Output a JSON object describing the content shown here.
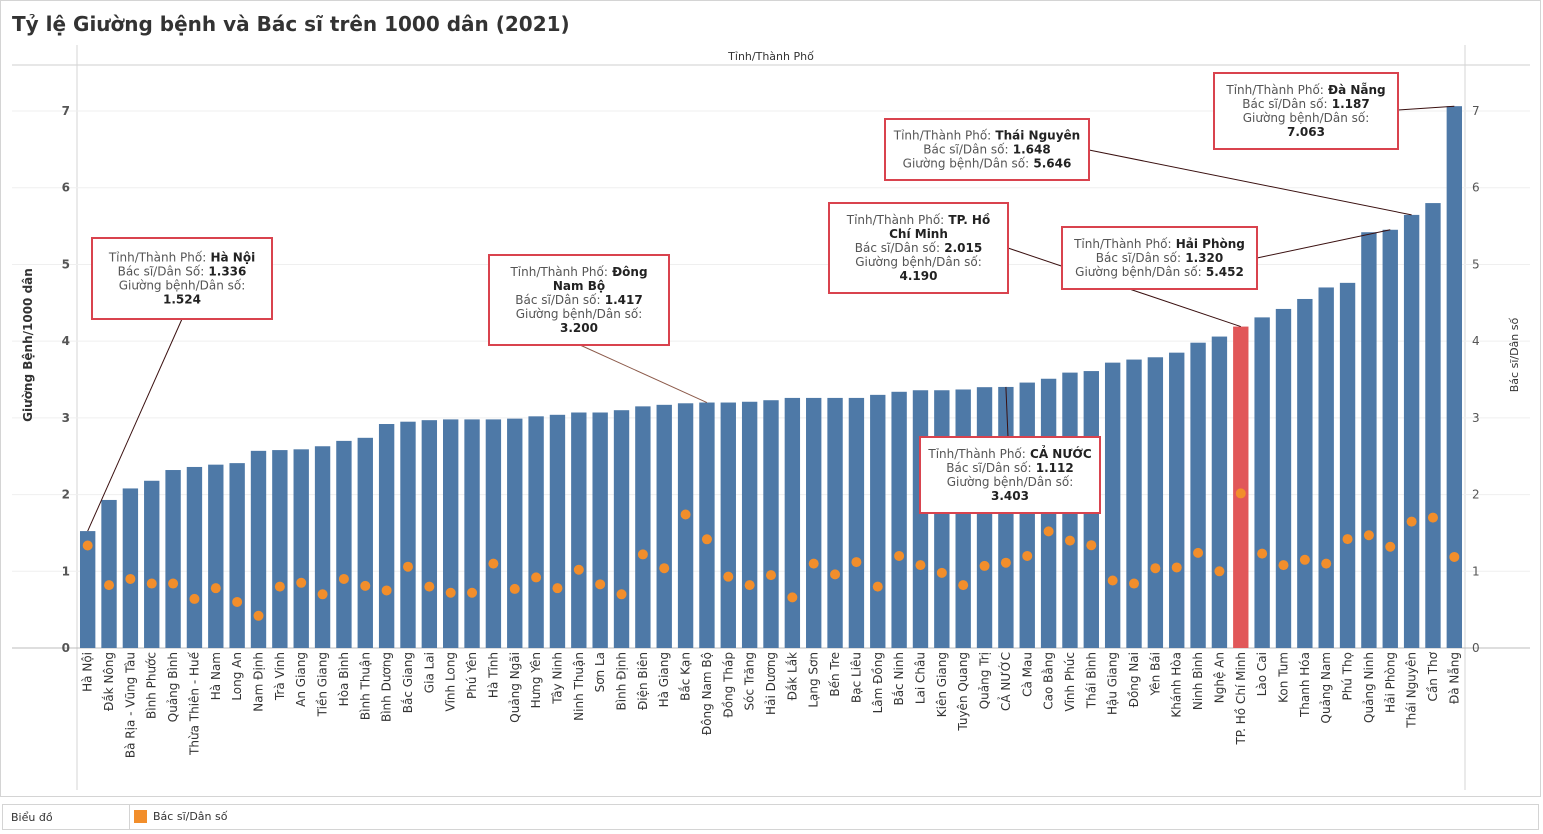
{
  "page": {
    "title": "Tỷ lệ Giường bệnh và Bác sĩ trên 1000 dân (2021)",
    "legend_label": "Biểu đồ",
    "legend_item": "Bác sĩ/Dân số"
  },
  "colors": {
    "bar": "#4e79a7",
    "highlight_bar": "#e15759",
    "dot": "#f28e2b",
    "tooltip_border": "#d9434e"
  },
  "chart_data": {
    "type": "bar",
    "title": "Tỷ lệ Giường bệnh và Bác sĩ trên 1000 dân (2021)",
    "column_header": "Tỉnh/Thành Phố",
    "ylabel": "Giường Bệnh/1000 dân",
    "y2label": "Bác sĩ/Dân số",
    "ylim": [
      0,
      7.6
    ],
    "y2lim": [
      0,
      7.6
    ],
    "yticks": [
      0,
      1,
      2,
      3,
      4,
      5,
      6,
      7
    ],
    "highlight": "TP. Hồ Chí Minh",
    "categories": [
      "Hà Nội",
      "Đắk Nông",
      "Bà Rịa - Vũng Tàu",
      "Bình Phước",
      "Quảng Bình",
      "Thừa Thiên - Huế",
      "Hà Nam",
      "Long An",
      "Nam Định",
      "Trà Vinh",
      "An Giang",
      "Tiền Giang",
      "Hòa Bình",
      "Bình Thuận",
      "Bình Dương",
      "Bắc Giang",
      "Gia Lai",
      "Vĩnh Long",
      "Phú Yên",
      "Hà Tĩnh",
      "Quảng Ngãi",
      "Hưng Yên",
      "Tây Ninh",
      "Ninh Thuận",
      "Sơn La",
      "Bình Định",
      "Điện Biên",
      "Hà Giang",
      "Bắc Kạn",
      "Đông Nam Bộ",
      "Đồng Tháp",
      "Sóc Trăng",
      "Hải Dương",
      "Đắk Lắk",
      "Lạng Sơn",
      "Bến Tre",
      "Bạc Liêu",
      "Lâm Đồng",
      "Bắc Ninh",
      "Lai Châu",
      "Kiên Giang",
      "Tuyên Quang",
      "Quảng Trị",
      "CẢ NƯỚC",
      "Cà Mau",
      "Cao Bằng",
      "Vĩnh Phúc",
      "Thái Bình",
      "Hậu Giang",
      "Đồng Nai",
      "Yên Bái",
      "Khánh Hòa",
      "Ninh Bình",
      "Nghệ An",
      "TP. Hồ Chí Minh",
      "Lào Cai",
      "Kon Tum",
      "Thanh Hóa",
      "Quảng Nam",
      "Phú Thọ",
      "Quảng Ninh",
      "Hải Phòng",
      "Thái Nguyên",
      "Cần Thơ",
      "Đà Nẵng"
    ],
    "series": [
      {
        "name": "Giường bệnh/Dân số",
        "type": "bar",
        "values": [
          1.524,
          1.93,
          2.08,
          2.18,
          2.32,
          2.36,
          2.39,
          2.41,
          2.57,
          2.58,
          2.59,
          2.63,
          2.7,
          2.74,
          2.92,
          2.95,
          2.97,
          2.98,
          2.98,
          2.98,
          2.99,
          3.02,
          3.04,
          3.07,
          3.07,
          3.1,
          3.15,
          3.17,
          3.19,
          3.2,
          3.2,
          3.21,
          3.23,
          3.26,
          3.26,
          3.26,
          3.26,
          3.3,
          3.34,
          3.36,
          3.36,
          3.37,
          3.4,
          3.403,
          3.46,
          3.51,
          3.59,
          3.61,
          3.72,
          3.76,
          3.79,
          3.85,
          3.98,
          4.06,
          4.19,
          4.31,
          4.42,
          4.55,
          4.7,
          4.76,
          5.42,
          5.452,
          5.646,
          5.8,
          7.063
        ]
      },
      {
        "name": "Bác sĩ/Dân số",
        "type": "scatter",
        "values": [
          1.336,
          0.82,
          0.9,
          0.84,
          0.84,
          0.64,
          0.78,
          0.6,
          0.42,
          0.8,
          0.85,
          0.7,
          0.9,
          0.81,
          0.75,
          1.06,
          0.8,
          0.72,
          0.72,
          1.1,
          0.77,
          0.92,
          0.78,
          1.02,
          0.83,
          0.7,
          1.22,
          1.04,
          1.74,
          1.417,
          0.93,
          0.82,
          0.95,
          0.66,
          1.1,
          0.96,
          1.12,
          0.8,
          1.2,
          1.08,
          0.98,
          0.82,
          1.07,
          1.112,
          1.2,
          1.52,
          1.4,
          1.34,
          0.88,
          0.84,
          1.04,
          1.05,
          1.24,
          1.0,
          2.015,
          1.23,
          1.08,
          1.15,
          1.1,
          1.42,
          1.47,
          1.32,
          1.648,
          1.7,
          1.187
        ]
      }
    ],
    "tooltips": [
      {
        "index": 0,
        "label": "Tỉnh/Thành Phố:",
        "name": "Hà Nội",
        "doc_label": "Bác sĩ/Dân Số:",
        "doc_value": "1.336",
        "bed_label": "Giường bệnh/Dân số:",
        "bed_value": "1.524"
      },
      {
        "index": 29,
        "label": "Tỉnh/Thành Phố:",
        "name": "Đông Nam Bộ",
        "doc_label": "Bác sĩ/Dân số:",
        "doc_value": "1.417",
        "bed_label": "Giường bệnh/Dân số:",
        "bed_value": "3.200"
      },
      {
        "index": 54,
        "label": "Tỉnh/Thành Phố:",
        "name": "TP. Hồ Chí Minh",
        "doc_label": "Bác sĩ/Dân số:",
        "doc_value": "2.015",
        "bed_label": "Giường bệnh/Dân số:",
        "bed_value": "4.190"
      },
      {
        "index": 43,
        "label": "Tỉnh/Thành Phố:",
        "name": "CẢ NƯỚC",
        "doc_label": "Bác sĩ/Dân số:",
        "doc_value": "1.112",
        "bed_label": "Giường bệnh/Dân số:",
        "bed_value": "3.403"
      },
      {
        "index": 61,
        "label": "Tỉnh/Thành Phố:",
        "name": "Hải Phòng",
        "doc_label": "Bác sĩ/Dân số:",
        "doc_value": "1.320",
        "bed_label": "Giường bệnh/Dân số:",
        "bed_value": "5.452"
      },
      {
        "index": 62,
        "label": "Tỉnh/Thành Phố:",
        "name": "Thái Nguyên",
        "doc_label": "Bác sĩ/Dân số:",
        "doc_value": "1.648",
        "bed_label": "Giường bệnh/Dân số:",
        "bed_value": "5.646"
      },
      {
        "index": 64,
        "label": "Tỉnh/Thành Phố:",
        "name": "Đà Nẵng",
        "doc_label": "Bác sĩ/Dân số:",
        "doc_value": "1.187",
        "bed_label": "Giường bệnh/Dân số:",
        "bed_value": "7.063"
      }
    ]
  }
}
